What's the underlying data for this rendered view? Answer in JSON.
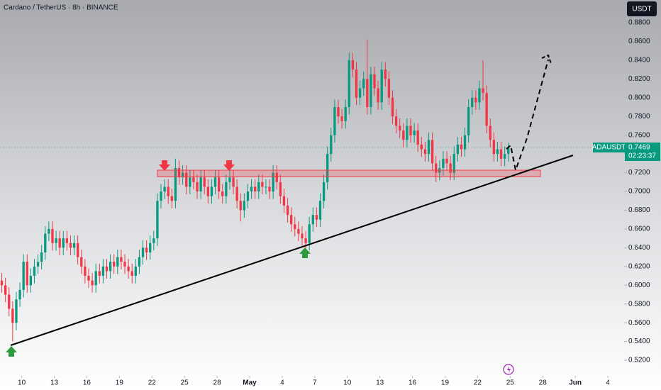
{
  "chart_data": {
    "type": "candlestick",
    "title": "Cardano / TetherUS · 8h · BINANCE",
    "currency": "USDT",
    "symbol": "ADAUSDT",
    "last_price": 0.7469,
    "countdown": "02:23:37",
    "up_color": "#089981",
    "down_color": "#f23645",
    "grid": false,
    "xlim": [
      -0.5,
      172
    ],
    "ylim": [
      0.5034,
      0.9042
    ],
    "yticks": [
      {
        "value": 0.52,
        "label": "0.5200"
      },
      {
        "value": 0.54,
        "label": "0.5400"
      },
      {
        "value": 0.56,
        "label": "0.5600"
      },
      {
        "value": 0.58,
        "label": "0.5800"
      },
      {
        "value": 0.6,
        "label": "0.6000"
      },
      {
        "value": 0.62,
        "label": "0.6200"
      },
      {
        "value": 0.64,
        "label": "0.6400"
      },
      {
        "value": 0.66,
        "label": "0.6600"
      },
      {
        "value": 0.68,
        "label": "0.6800"
      },
      {
        "value": 0.7,
        "label": "0.7000"
      },
      {
        "value": 0.72,
        "label": "0.7200"
      },
      {
        "value": 0.74,
        "label": "0.7400"
      },
      {
        "value": 0.76,
        "label": "0.7600"
      },
      {
        "value": 0.78,
        "label": "0.7800"
      },
      {
        "value": 0.8,
        "label": "0.8000"
      },
      {
        "value": 0.82,
        "label": "0.8200"
      },
      {
        "value": 0.84,
        "label": "0.8400"
      },
      {
        "value": 0.86,
        "label": "0.8600"
      },
      {
        "value": 0.88,
        "label": "0.8800"
      }
    ],
    "xticks": [
      {
        "value": 5.5,
        "label": "10"
      },
      {
        "value": 14.5,
        "label": "13"
      },
      {
        "value": 23.5,
        "label": "16"
      },
      {
        "value": 32.5,
        "label": "19"
      },
      {
        "value": 41.5,
        "label": "22"
      },
      {
        "value": 50.5,
        "label": "25"
      },
      {
        "value": 59.5,
        "label": "28"
      },
      {
        "value": 68.5,
        "label": "May"
      },
      {
        "value": 77.5,
        "label": "4"
      },
      {
        "value": 86.5,
        "label": "7"
      },
      {
        "value": 95.5,
        "label": "10"
      },
      {
        "value": 104.5,
        "label": "13"
      },
      {
        "value": 113.5,
        "label": "16"
      },
      {
        "value": 122.5,
        "label": "19"
      },
      {
        "value": 131.5,
        "label": "22"
      },
      {
        "value": 140.5,
        "label": "25"
      },
      {
        "value": 149.5,
        "label": "28"
      },
      {
        "value": 158.5,
        "label": "Jun"
      },
      {
        "value": 167.5,
        "label": "4"
      }
    ],
    "open": [
      0.605,
      0.6,
      0.59,
      0.575,
      0.56,
      0.585,
      0.595,
      0.625,
      0.6,
      0.61,
      0.62,
      0.625,
      0.635,
      0.655,
      0.66,
      0.645,
      0.65,
      0.64,
      0.65,
      0.645,
      0.64,
      0.645,
      0.63,
      0.62,
      0.61,
      0.605,
      0.6,
      0.615,
      0.61,
      0.62,
      0.615,
      0.625,
      0.62,
      0.63,
      0.625,
      0.62,
      0.615,
      0.61,
      0.62,
      0.63,
      0.64,
      0.635,
      0.645,
      0.65,
      0.69,
      0.7,
      0.705,
      0.695,
      0.69,
      0.725,
      0.715,
      0.72,
      0.705,
      0.715,
      0.71,
      0.7,
      0.715,
      0.705,
      0.695,
      0.705,
      0.715,
      0.7,
      0.695,
      0.71,
      0.715,
      0.705,
      0.69,
      0.68,
      0.69,
      0.7,
      0.705,
      0.7,
      0.71,
      0.705,
      0.705,
      0.7,
      0.72,
      0.71,
      0.695,
      0.685,
      0.675,
      0.665,
      0.66,
      0.655,
      0.65,
      0.645,
      0.665,
      0.675,
      0.67,
      0.69,
      0.71,
      0.74,
      0.76,
      0.79,
      0.78,
      0.775,
      0.79,
      0.84,
      0.83,
      0.8,
      0.81,
      0.82,
      0.79,
      0.825,
      0.81,
      0.795,
      0.83,
      0.82,
      0.8,
      0.78,
      0.77,
      0.765,
      0.755,
      0.77,
      0.76,
      0.765,
      0.75,
      0.745,
      0.74,
      0.755,
      0.73,
      0.72,
      0.725,
      0.735,
      0.73,
      0.72,
      0.74,
      0.75,
      0.745,
      0.76,
      0.79,
      0.8,
      0.795,
      0.81,
      0.805,
      0.77,
      0.755,
      0.74,
      0.745,
      0.735,
      0.74
    ],
    "high": [
      0.613,
      0.608,
      0.598,
      0.583,
      0.593,
      0.603,
      0.633,
      0.633,
      0.618,
      0.628,
      0.633,
      0.643,
      0.663,
      0.668,
      0.668,
      0.658,
      0.658,
      0.658,
      0.658,
      0.653,
      0.653,
      0.653,
      0.638,
      0.628,
      0.618,
      0.613,
      0.623,
      0.623,
      0.628,
      0.628,
      0.633,
      0.633,
      0.638,
      0.638,
      0.633,
      0.628,
      0.623,
      0.628,
      0.638,
      0.648,
      0.648,
      0.653,
      0.658,
      0.698,
      0.708,
      0.713,
      0.713,
      0.703,
      0.735,
      0.733,
      0.728,
      0.728,
      0.723,
      0.723,
      0.718,
      0.723,
      0.723,
      0.713,
      0.713,
      0.723,
      0.723,
      0.708,
      0.718,
      0.723,
      0.723,
      0.713,
      0.698,
      0.698,
      0.708,
      0.713,
      0.713,
      0.718,
      0.718,
      0.713,
      0.713,
      0.728,
      0.728,
      0.718,
      0.703,
      0.693,
      0.683,
      0.673,
      0.668,
      0.663,
      0.658,
      0.673,
      0.683,
      0.683,
      0.698,
      0.718,
      0.748,
      0.768,
      0.798,
      0.798,
      0.788,
      0.798,
      0.848,
      0.848,
      0.838,
      0.818,
      0.828,
      0.862,
      0.833,
      0.833,
      0.818,
      0.838,
      0.838,
      0.828,
      0.808,
      0.788,
      0.778,
      0.773,
      0.778,
      0.778,
      0.773,
      0.773,
      0.758,
      0.753,
      0.763,
      0.763,
      0.738,
      0.733,
      0.743,
      0.743,
      0.738,
      0.748,
      0.758,
      0.758,
      0.768,
      0.798,
      0.808,
      0.808,
      0.818,
      0.84,
      0.813,
      0.778,
      0.763,
      0.753,
      0.753,
      0.748,
      0.752
    ],
    "low": [
      0.592,
      0.582,
      0.567,
      0.54,
      0.552,
      0.577,
      0.587,
      0.592,
      0.592,
      0.602,
      0.612,
      0.617,
      0.627,
      0.647,
      0.637,
      0.637,
      0.632,
      0.632,
      0.637,
      0.632,
      0.632,
      0.622,
      0.612,
      0.602,
      0.597,
      0.592,
      0.592,
      0.602,
      0.602,
      0.607,
      0.607,
      0.612,
      0.612,
      0.617,
      0.612,
      0.607,
      0.602,
      0.602,
      0.612,
      0.622,
      0.627,
      0.627,
      0.637,
      0.642,
      0.682,
      0.692,
      0.687,
      0.682,
      0.682,
      0.707,
      0.707,
      0.697,
      0.697,
      0.702,
      0.692,
      0.692,
      0.697,
      0.687,
      0.687,
      0.697,
      0.692,
      0.687,
      0.687,
      0.702,
      0.697,
      0.682,
      0.668,
      0.672,
      0.682,
      0.692,
      0.692,
      0.692,
      0.697,
      0.697,
      0.692,
      0.692,
      0.702,
      0.687,
      0.677,
      0.667,
      0.657,
      0.652,
      0.647,
      0.642,
      0.638,
      0.637,
      0.657,
      0.662,
      0.662,
      0.682,
      0.702,
      0.732,
      0.752,
      0.772,
      0.767,
      0.767,
      0.782,
      0.822,
      0.792,
      0.792,
      0.802,
      0.782,
      0.782,
      0.802,
      0.787,
      0.787,
      0.812,
      0.792,
      0.772,
      0.762,
      0.757,
      0.747,
      0.747,
      0.752,
      0.752,
      0.742,
      0.737,
      0.732,
      0.732,
      0.722,
      0.71,
      0.712,
      0.717,
      0.722,
      0.712,
      0.712,
      0.732,
      0.737,
      0.737,
      0.752,
      0.782,
      0.787,
      0.787,
      0.797,
      0.762,
      0.747,
      0.732,
      0.732,
      0.727,
      0.727,
      0.732
    ],
    "close": [
      0.6,
      0.59,
      0.575,
      0.56,
      0.585,
      0.595,
      0.625,
      0.6,
      0.61,
      0.62,
      0.625,
      0.635,
      0.655,
      0.66,
      0.645,
      0.65,
      0.64,
      0.65,
      0.645,
      0.64,
      0.645,
      0.63,
      0.62,
      0.61,
      0.605,
      0.6,
      0.615,
      0.61,
      0.62,
      0.615,
      0.625,
      0.62,
      0.63,
      0.625,
      0.62,
      0.615,
      0.61,
      0.62,
      0.63,
      0.64,
      0.635,
      0.645,
      0.65,
      0.69,
      0.7,
      0.705,
      0.695,
      0.69,
      0.725,
      0.715,
      0.72,
      0.705,
      0.715,
      0.71,
      0.7,
      0.715,
      0.705,
      0.695,
      0.705,
      0.715,
      0.7,
      0.695,
      0.71,
      0.715,
      0.705,
      0.69,
      0.68,
      0.69,
      0.7,
      0.705,
      0.7,
      0.71,
      0.705,
      0.705,
      0.7,
      0.72,
      0.71,
      0.695,
      0.685,
      0.675,
      0.665,
      0.66,
      0.655,
      0.65,
      0.645,
      0.665,
      0.675,
      0.67,
      0.69,
      0.71,
      0.74,
      0.76,
      0.79,
      0.78,
      0.775,
      0.79,
      0.84,
      0.83,
      0.8,
      0.81,
      0.82,
      0.79,
      0.825,
      0.81,
      0.795,
      0.83,
      0.82,
      0.8,
      0.78,
      0.77,
      0.765,
      0.755,
      0.77,
      0.76,
      0.765,
      0.75,
      0.745,
      0.74,
      0.755,
      0.73,
      0.72,
      0.725,
      0.735,
      0.73,
      0.72,
      0.74,
      0.75,
      0.745,
      0.76,
      0.79,
      0.8,
      0.795,
      0.81,
      0.805,
      0.77,
      0.755,
      0.74,
      0.745,
      0.735,
      0.74,
      0.7469
    ]
  }
}
